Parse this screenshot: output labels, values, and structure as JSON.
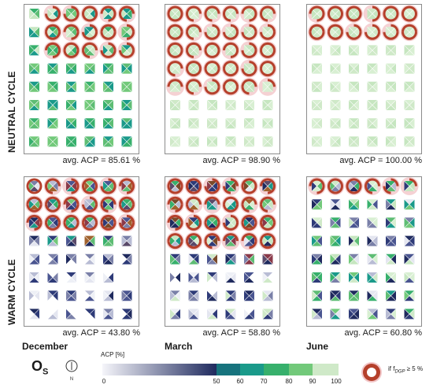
{
  "row_labels": {
    "neutral": "NEUTRAL CYCLE",
    "warm": "WARM CYCLE"
  },
  "col_labels": {
    "december": "December",
    "march": "March",
    "june": "June"
  },
  "avg": {
    "neutral_december": "avg. ACP = 85.61 %",
    "neutral_march": "avg. ACP = 98.90 %",
    "neutral_june": "avg. ACP = 100.00 %",
    "warm_december": "avg. ACP = 43.80 %",
    "warm_march": "avg. ACP = 58.80 %",
    "warm_june": "avg. ACP = 60.80 %"
  },
  "os_label": {
    "main": "O",
    "sub": "S"
  },
  "compass": {
    "north": "N"
  },
  "legend": {
    "title": "ACP [%]",
    "ticks": [
      "0",
      "50",
      "60",
      "70",
      "80",
      "90",
      "100"
    ],
    "note_prefix": "if f",
    "note_sub": "DGP",
    "note_suffix": " ≥ 5 %",
    "bins": [
      {
        "range": "0-50",
        "start": "#f5f5fa",
        "end": "#1f2a5e"
      },
      {
        "range": "50-60",
        "color": "#17737d"
      },
      {
        "range": "60-70",
        "color": "#1a9a8a"
      },
      {
        "range": "70-80",
        "color": "#37b06c"
      },
      {
        "range": "80-90",
        "color": "#72c97a"
      },
      {
        "range": "90-100",
        "color": "#cfe9c8"
      }
    ],
    "marker_color": "#b5402b",
    "glow_color": "#f2c6c8"
  },
  "colors": {
    "panel_border": "#8c8c8c",
    "cross_line": "#ffffff"
  }
}
